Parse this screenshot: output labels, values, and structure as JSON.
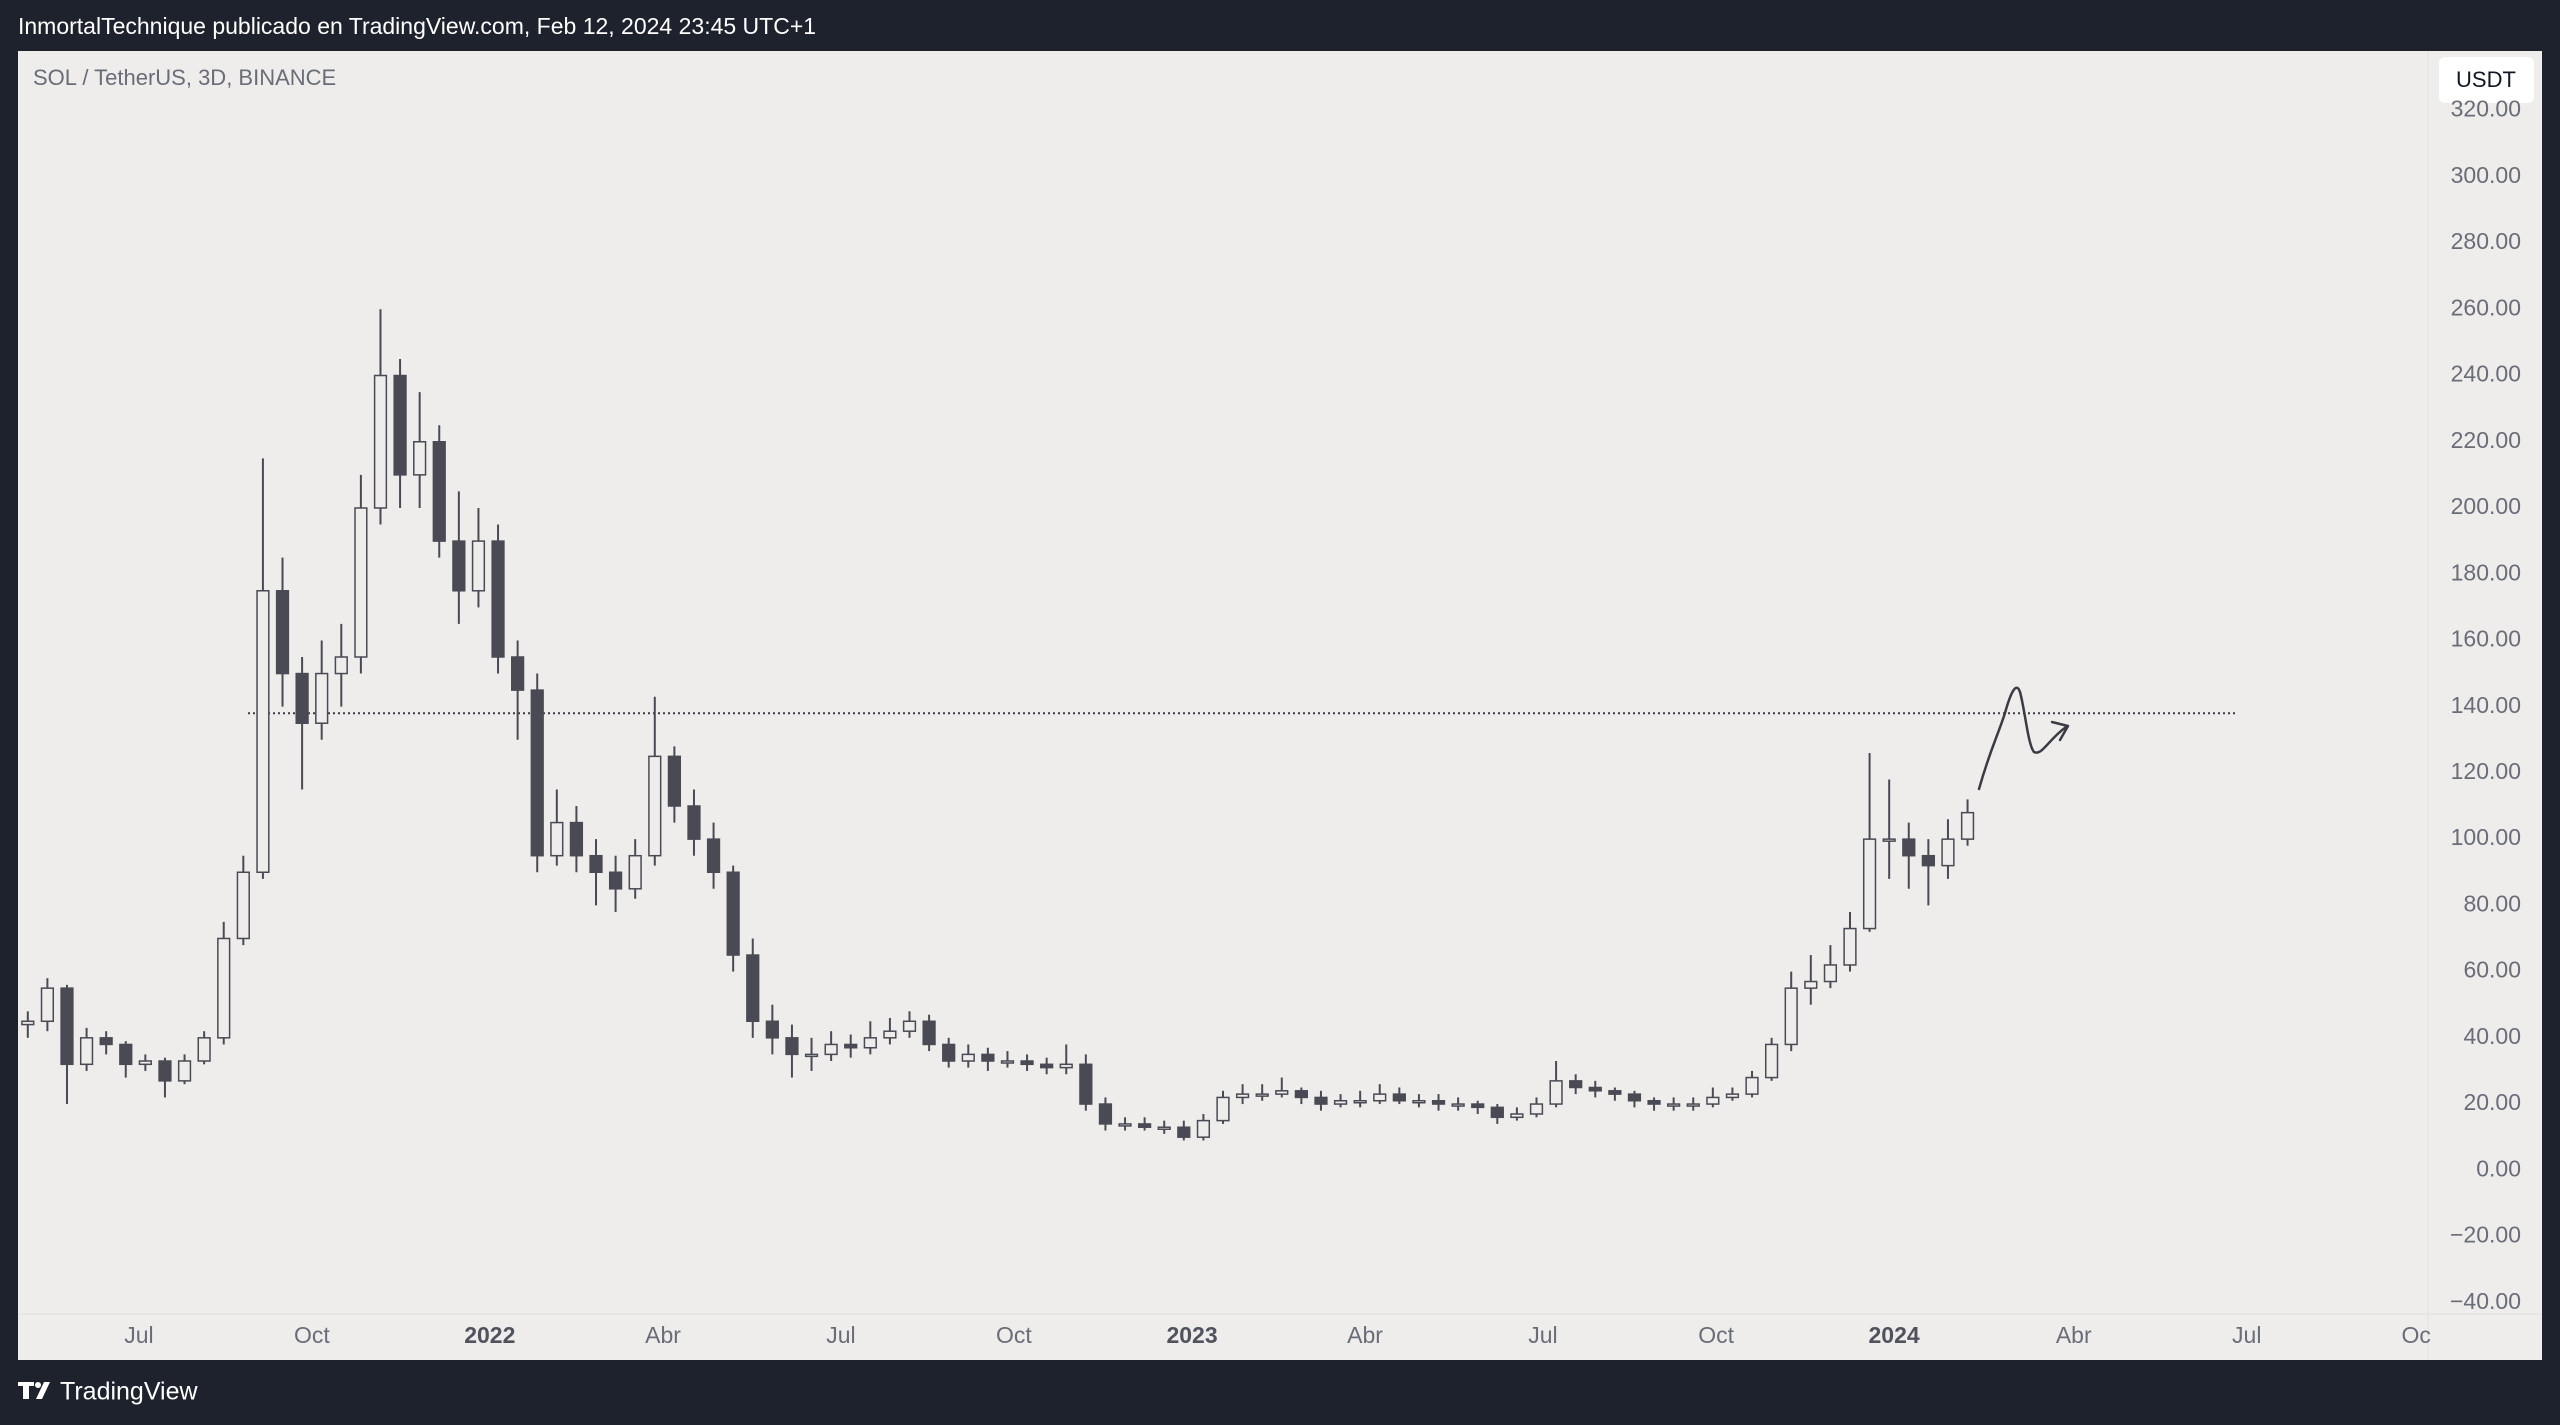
{
  "header": "InmortalTechnique publicado en TradingView.com, Feb 12, 2024 23:45 UTC+1",
  "footer": {
    "brand": "TradingView"
  },
  "chart_data": {
    "type": "candlestick",
    "title": "SOL / TetherUS, 3D, BINANCE",
    "currency": "USDT",
    "up_color": "#eeedeb",
    "down_color": "#4a4a54",
    "border_color": "#4a4a54",
    "grid": false,
    "hline": 138,
    "open": [
      44,
      45,
      55,
      32,
      40,
      38,
      32,
      33,
      27,
      33,
      40,
      70,
      90,
      175,
      150,
      135,
      150,
      155,
      200,
      240,
      210,
      220,
      190,
      175,
      190,
      155,
      145,
      95,
      105,
      95,
      90,
      85,
      95,
      125,
      110,
      100,
      90,
      65,
      45,
      40,
      35,
      35,
      38,
      37,
      40,
      42,
      45,
      38,
      33,
      35,
      33,
      33,
      32,
      31,
      32,
      20,
      14,
      14,
      13,
      13,
      10,
      15,
      22,
      23,
      23,
      24,
      22,
      20,
      21,
      21,
      23,
      21,
      21,
      20,
      20,
      19,
      16,
      17,
      20,
      27,
      25,
      24,
      23,
      21,
      20,
      20,
      20,
      22,
      23,
      28,
      38,
      55,
      57,
      62,
      73,
      100,
      100,
      95,
      92,
      100
    ],
    "high": [
      48,
      58,
      56,
      43,
      42,
      39,
      35,
      34,
      35,
      42,
      75,
      95,
      215,
      185,
      155,
      160,
      165,
      210,
      260,
      245,
      235,
      225,
      205,
      200,
      195,
      160,
      150,
      115,
      110,
      100,
      95,
      100,
      143,
      128,
      115,
      105,
      92,
      70,
      50,
      44,
      40,
      42,
      41,
      45,
      46,
      48,
      47,
      40,
      38,
      37,
      36,
      35,
      34,
      38,
      35,
      22,
      16,
      16,
      15,
      15,
      17,
      24,
      26,
      26,
      28,
      25,
      24,
      23,
      24,
      26,
      25,
      23,
      23,
      22,
      21,
      20,
      19,
      22,
      33,
      29,
      27,
      25,
      24,
      22,
      22,
      22,
      25,
      25,
      30,
      40,
      60,
      65,
      68,
      78,
      126,
      118,
      105,
      100,
      106,
      112
    ],
    "low": [
      40,
      42,
      20,
      30,
      35,
      28,
      30,
      22,
      26,
      32,
      38,
      68,
      88,
      140,
      115,
      130,
      140,
      150,
      195,
      200,
      200,
      185,
      165,
      170,
      150,
      130,
      90,
      92,
      90,
      80,
      78,
      82,
      92,
      105,
      95,
      85,
      60,
      40,
      35,
      28,
      30,
      33,
      34,
      35,
      38,
      40,
      36,
      31,
      31,
      30,
      31,
      30,
      29,
      29,
      18,
      12,
      12,
      12,
      11,
      9,
      9,
      14,
      20,
      21,
      22,
      20,
      18,
      19,
      19,
      20,
      20,
      19,
      18,
      18,
      17,
      14,
      15,
      16,
      19,
      23,
      22,
      21,
      19,
      18,
      18,
      18,
      19,
      21,
      22,
      27,
      36,
      50,
      55,
      60,
      72,
      88,
      85,
      80,
      88,
      98
    ],
    "close": [
      45,
      55,
      32,
      40,
      38,
      32,
      33,
      27,
      33,
      40,
      70,
      90,
      175,
      150,
      135,
      150,
      155,
      200,
      240,
      210,
      220,
      190,
      175,
      190,
      155,
      145,
      95,
      105,
      95,
      90,
      85,
      95,
      125,
      110,
      100,
      90,
      65,
      45,
      40,
      35,
      35,
      38,
      37,
      40,
      42,
      45,
      38,
      33,
      35,
      33,
      33,
      32,
      31,
      32,
      20,
      14,
      14,
      13,
      13,
      10,
      15,
      22,
      23,
      23,
      24,
      22,
      20,
      21,
      21,
      23,
      21,
      21,
      20,
      20,
      19,
      16,
      17,
      20,
      27,
      25,
      24,
      23,
      21,
      20,
      20,
      20,
      22,
      23,
      28,
      38,
      55,
      57,
      62,
      73,
      100,
      100,
      95,
      92,
      100,
      108
    ],
    "xlim": [
      -0.5,
      122.5
    ],
    "xticks": [
      {
        "value": 5.67,
        "label": "Jul"
      },
      {
        "value": 14.5,
        "label": "Oct"
      },
      {
        "value": 23.58,
        "label": "2022",
        "major": true
      },
      {
        "value": 32.42,
        "label": "Abr"
      },
      {
        "value": 41.5,
        "label": "Jul"
      },
      {
        "value": 50.33,
        "label": "Oct"
      },
      {
        "value": 59.42,
        "label": "2023",
        "major": true
      },
      {
        "value": 68.25,
        "label": "Abr"
      },
      {
        "value": 77.33,
        "label": "Jul"
      },
      {
        "value": 86.17,
        "label": "Oct"
      },
      {
        "value": 95.25,
        "label": "2024",
        "major": true
      },
      {
        "value": 104.42,
        "label": "Abr"
      },
      {
        "value": 113.25,
        "label": "Jul"
      },
      {
        "value": 121.9,
        "label": "Oc"
      }
    ],
    "ylim": [
      -43.4,
      338
    ],
    "yticks": [
      {
        "value": -40,
        "label": "−40.00"
      },
      {
        "value": -20,
        "label": "−20.00"
      },
      {
        "value": 0,
        "label": "0.00"
      },
      {
        "value": 20,
        "label": "20.00"
      },
      {
        "value": 40,
        "label": "40.00"
      },
      {
        "value": 60,
        "label": "60.00"
      },
      {
        "value": 80,
        "label": "80.00"
      },
      {
        "value": 100,
        "label": "100.00"
      },
      {
        "value": 120,
        "label": "120.00"
      },
      {
        "value": 140,
        "label": "140.00"
      },
      {
        "value": 160,
        "label": "160.00"
      },
      {
        "value": 180,
        "label": "180.00"
      },
      {
        "value": 200,
        "label": "200.00"
      },
      {
        "value": 220,
        "label": "220.00"
      },
      {
        "value": 240,
        "label": "240.00"
      },
      {
        "value": 260,
        "label": "260.00"
      },
      {
        "value": 280,
        "label": "280.00"
      },
      {
        "value": 300,
        "label": "300.00"
      },
      {
        "value": 320,
        "label": "320.00"
      }
    ]
  }
}
